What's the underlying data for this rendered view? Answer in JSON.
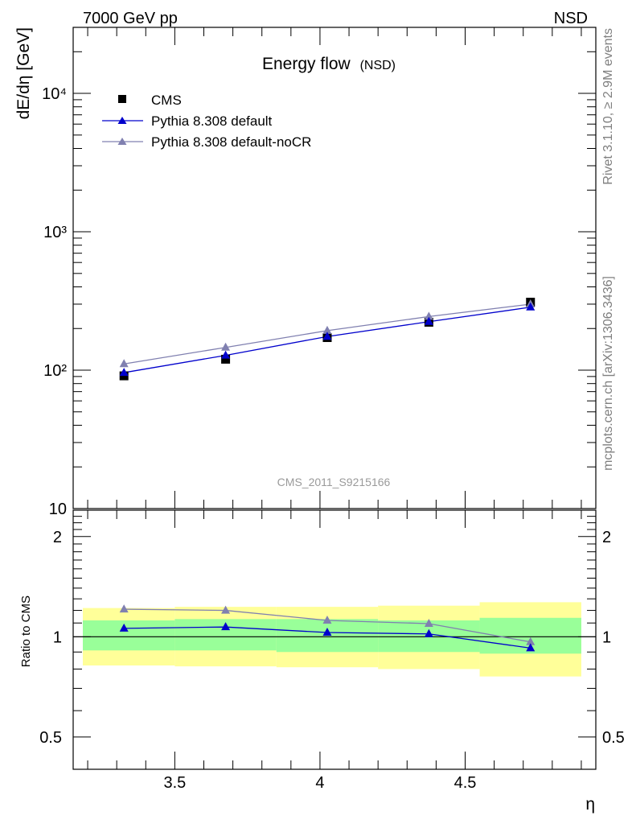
{
  "header": {
    "beam": "7000 GeV pp",
    "process": "NSD"
  },
  "side_labels": {
    "rivet": "Rivet 3.1.10, ≥ 2.9M events",
    "source": "mcplots.cern.ch [arXiv:1306.3436]"
  },
  "plot": {
    "title": "Energy flow",
    "title_suffix": "(NSD)",
    "ylabel": "dE/dη [GeV]",
    "ratio_ylabel": "Ratio to CMS",
    "xlabel": "η",
    "watermark": "CMS_2011_S9215166"
  },
  "legend": [
    {
      "label": "CMS",
      "marker": "square",
      "color": "#000000"
    },
    {
      "label": "Pythia 8.308 default",
      "marker": "triangle",
      "color": "#0000cc"
    },
    {
      "label": "Pythia 8.308 default-noCR",
      "marker": "triangle",
      "color": "#8080b0"
    }
  ],
  "colors": {
    "data": "#000000",
    "pythia_default": "#0000cc",
    "pythia_nocr": "#8080b0",
    "band_stat": "#99ff99",
    "band_total": "#ffff99"
  },
  "chart_data": [
    {
      "type": "scatter",
      "panel": "main",
      "title": "Energy flow",
      "xlabel": "",
      "ylabel": "dE/dη [GeV]",
      "xlim": [
        3.15,
        4.95
      ],
      "ylim": [
        10,
        30000
      ],
      "yscale": "log",
      "y_ticks": [
        {
          "value": 10,
          "label": "10"
        },
        {
          "value": 100,
          "label": "10²"
        },
        {
          "value": 1000,
          "label": "10³"
        },
        {
          "value": 10000,
          "label": "10⁴"
        }
      ],
      "legend_position": "top-left",
      "x": [
        3.325,
        3.675,
        4.025,
        4.375,
        4.725
      ],
      "x_edges": [
        3.15,
        3.5,
        3.85,
        4.2,
        4.55,
        4.9
      ],
      "series": [
        {
          "name": "CMS",
          "values": [
            91,
            120,
            172,
            222,
            310
          ]
        },
        {
          "name": "Pythia 8.308 default",
          "values": [
            96,
            128,
            175,
            224,
            285
          ]
        },
        {
          "name": "Pythia 8.308 default-noCR",
          "values": [
            111,
            146,
            193,
            244,
            300
          ]
        }
      ]
    },
    {
      "type": "line",
      "panel": "ratio",
      "xlabel": "η",
      "ylabel": "Ratio to CMS",
      "xlim": [
        3.15,
        4.95
      ],
      "ylim": [
        0.4,
        2.4
      ],
      "yscale": "log",
      "x_ticks": [
        {
          "value": 3.5,
          "label": "3.5"
        },
        {
          "value": 4.0,
          "label": "4"
        },
        {
          "value": 4.5,
          "label": "4.5"
        }
      ],
      "y_ticks": [
        {
          "value": 0.5,
          "label": "0.5"
        },
        {
          "value": 1,
          "label": "1"
        },
        {
          "value": 2,
          "label": "2"
        }
      ],
      "x": [
        3.325,
        3.675,
        4.025,
        4.375,
        4.725
      ],
      "bands": {
        "x_edges": [
          3.15,
          3.5,
          3.85,
          4.2,
          4.55,
          4.9
        ],
        "stat": [
          [
            0.91,
            1.12
          ],
          [
            0.91,
            1.13
          ],
          [
            0.9,
            1.13
          ],
          [
            0.9,
            1.12
          ],
          [
            0.89,
            1.14
          ]
        ],
        "total": [
          [
            0.82,
            1.22
          ],
          [
            0.815,
            1.23
          ],
          [
            0.81,
            1.23
          ],
          [
            0.8,
            1.24
          ],
          [
            0.76,
            1.27
          ]
        ]
      },
      "series": [
        {
          "name": "Pythia 8.308 default",
          "values": [
            1.06,
            1.07,
            1.03,
            1.02,
            0.925
          ]
        },
        {
          "name": "Pythia 8.308 default-noCR",
          "values": [
            1.21,
            1.2,
            1.12,
            1.095,
            0.965
          ]
        }
      ]
    }
  ]
}
